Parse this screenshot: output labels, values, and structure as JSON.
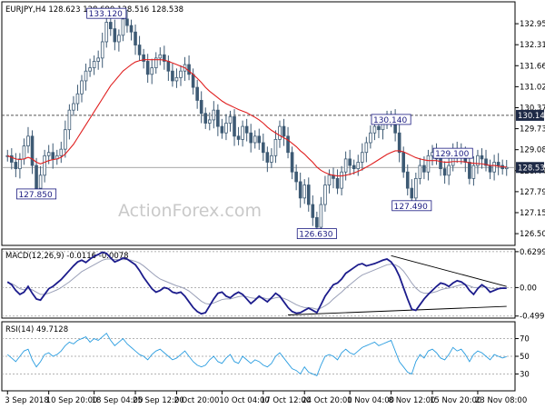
{
  "chart_data": [
    {
      "type": "candlestick",
      "header": "EURJPY,H4  128.623 128.690 128.516 128.538",
      "watermark": "ActionForex.com",
      "ylim": [
        126.2,
        133.6
      ],
      "yticks": [
        "132.955",
        "132.310",
        "131.665",
        "131.020",
        "130.375",
        "129.730",
        "129.085",
        "128.440",
        "127.795",
        "127.150",
        "126.505"
      ],
      "ytick_values": [
        132.955,
        132.31,
        131.665,
        131.02,
        130.375,
        129.73,
        129.085,
        128.44,
        127.795,
        127.15,
        126.505
      ],
      "last_price": {
        "label": "128.538",
        "value": 128.538
      },
      "resistance": {
        "label": "130.140",
        "value": 130.14
      },
      "annotations": [
        {
          "label": "133.120",
          "value": 133.12,
          "bar": 24
        },
        {
          "label": "127.850",
          "value": 127.85,
          "bar": 7
        },
        {
          "label": "126.630",
          "value": 126.63,
          "bar": 75
        },
        {
          "label": "130.140",
          "value": 130.14,
          "bar": 93
        },
        {
          "label": "127.490",
          "value": 127.49,
          "bar": 98
        },
        {
          "label": "129.100",
          "value": 129.1,
          "bar": 108
        }
      ],
      "series": [
        {
          "name": "EURJPY",
          "kind": "close-path",
          "values": [
            128.9,
            128.7,
            128.5,
            128.8,
            129.2,
            129.5,
            128.6,
            127.9,
            128.3,
            128.9,
            129.0,
            128.8,
            128.9,
            129.1,
            129.7,
            130.3,
            130.5,
            130.8,
            131.2,
            131.5,
            131.6,
            131.8,
            131.9,
            132.4,
            133.0,
            132.8,
            132.4,
            132.6,
            133.1,
            132.9,
            132.7,
            132.3,
            132.0,
            131.8,
            131.4,
            131.6,
            131.9,
            132.0,
            131.8,
            131.5,
            131.2,
            131.3,
            131.5,
            131.7,
            131.4,
            131.0,
            130.6,
            130.2,
            129.9,
            130.0,
            130.3,
            129.8,
            129.6,
            129.9,
            130.1,
            129.5,
            129.4,
            129.8,
            129.6,
            129.3,
            129.5,
            129.3,
            129.0,
            128.7,
            128.9,
            129.4,
            129.8,
            129.5,
            129.0,
            128.4,
            128.1,
            127.6,
            128.0,
            127.4,
            127.0,
            126.7,
            127.4,
            128.0,
            128.3,
            128.2,
            127.9,
            128.4,
            128.8,
            128.6,
            128.5,
            128.7,
            129.0,
            129.3,
            129.6,
            129.8,
            129.7,
            129.9,
            130.0,
            130.1,
            129.6,
            129.0,
            128.4,
            127.9,
            127.6,
            128.2,
            128.6,
            128.4,
            128.9,
            129.0,
            128.8,
            128.5,
            128.3,
            128.6,
            129.1,
            128.9,
            129.0,
            128.7,
            128.2,
            128.6,
            128.9,
            128.8,
            128.6,
            128.4,
            128.7,
            128.6,
            128.5,
            128.54
          ]
        },
        {
          "name": "MA",
          "kind": "line",
          "color": "#e02020",
          "values": [
            128.9,
            128.85,
            128.8,
            128.78,
            128.8,
            128.85,
            128.8,
            128.7,
            128.65,
            128.7,
            128.75,
            128.78,
            128.8,
            128.85,
            128.95,
            129.1,
            129.25,
            129.45,
            129.65,
            129.85,
            130.05,
            130.25,
            130.45,
            130.65,
            130.85,
            131.05,
            131.2,
            131.35,
            131.5,
            131.6,
            131.7,
            131.78,
            131.82,
            131.85,
            131.85,
            131.85,
            131.85,
            131.85,
            131.84,
            131.8,
            131.75,
            131.7,
            131.65,
            131.6,
            131.5,
            131.4,
            131.28,
            131.15,
            131.0,
            130.88,
            130.78,
            130.68,
            130.58,
            130.5,
            130.44,
            130.38,
            130.32,
            130.27,
            130.22,
            130.15,
            130.08,
            130.0,
            129.9,
            129.78,
            129.68,
            129.6,
            129.52,
            129.45,
            129.38,
            129.28,
            129.18,
            129.05,
            128.95,
            128.82,
            128.7,
            128.55,
            128.45,
            128.38,
            128.33,
            128.3,
            128.28,
            128.28,
            128.3,
            128.33,
            128.37,
            128.42,
            128.48,
            128.55,
            128.62,
            128.7,
            128.78,
            128.86,
            128.94,
            129.0,
            129.05,
            129.05,
            129.02,
            128.96,
            128.9,
            128.84,
            128.8,
            128.77,
            128.75,
            128.75,
            128.75,
            128.72,
            128.7,
            128.7,
            128.72,
            128.72,
            128.72,
            128.71,
            128.68,
            128.67,
            128.66,
            128.65,
            128.63,
            128.6,
            128.6,
            128.58,
            128.56,
            128.55
          ]
        }
      ]
    },
    {
      "type": "line",
      "header": "MACD(12,26,9) -0.0116 -0.0078",
      "ylim": [
        -0.52,
        0.66
      ],
      "yticks": [
        "0.6299",
        "0.00",
        "-0.4997"
      ],
      "ytick_values": [
        0.6299,
        0.0,
        -0.4997
      ],
      "trendlines": [
        {
          "name": "upper",
          "from": {
            "bar": 93,
            "value": 0.56
          },
          "to": {
            "bar": 121,
            "value": 0.02
          }
        },
        {
          "name": "lower",
          "from": {
            "bar": 68,
            "value": -0.48
          },
          "to": {
            "bar": 121,
            "value": -0.33
          }
        }
      ],
      "series": [
        {
          "name": "MACD",
          "color": "#1c1c8c",
          "values": [
            0.1,
            0.05,
            -0.05,
            -0.12,
            -0.08,
            0.02,
            -0.1,
            -0.2,
            -0.22,
            -0.12,
            -0.02,
            0.02,
            0.08,
            0.14,
            0.22,
            0.3,
            0.38,
            0.45,
            0.48,
            0.44,
            0.5,
            0.55,
            0.58,
            0.62,
            0.6,
            0.52,
            0.45,
            0.48,
            0.52,
            0.5,
            0.45,
            0.4,
            0.3,
            0.18,
            0.08,
            -0.02,
            -0.08,
            -0.05,
            0.0,
            -0.02,
            -0.08,
            -0.1,
            -0.08,
            -0.15,
            -0.25,
            -0.35,
            -0.42,
            -0.46,
            -0.44,
            -0.32,
            -0.2,
            -0.1,
            -0.08,
            -0.15,
            -0.18,
            -0.12,
            -0.08,
            -0.12,
            -0.2,
            -0.28,
            -0.22,
            -0.15,
            -0.2,
            -0.25,
            -0.18,
            -0.1,
            -0.15,
            -0.25,
            -0.35,
            -0.42,
            -0.45,
            -0.44,
            -0.4,
            -0.36,
            -0.4,
            -0.44,
            -0.3,
            -0.15,
            -0.05,
            0.05,
            0.08,
            0.15,
            0.25,
            0.3,
            0.35,
            0.4,
            0.42,
            0.38,
            0.4,
            0.42,
            0.45,
            0.48,
            0.5,
            0.45,
            0.35,
            0.2,
            0.0,
            -0.2,
            -0.38,
            -0.4,
            -0.3,
            -0.2,
            -0.12,
            -0.05,
            0.02,
            0.08,
            0.06,
            0.02,
            0.08,
            0.12,
            0.1,
            0.05,
            -0.05,
            -0.12,
            -0.02,
            0.05,
            0.0,
            -0.08,
            -0.05,
            -0.02,
            -0.01,
            -0.0116
          ]
        },
        {
          "name": "Signal",
          "color": "#9aa0b8",
          "values": [
            0.08,
            0.07,
            0.03,
            -0.02,
            -0.04,
            -0.02,
            -0.04,
            -0.08,
            -0.12,
            -0.12,
            -0.1,
            -0.07,
            -0.04,
            0.0,
            0.05,
            0.1,
            0.16,
            0.22,
            0.28,
            0.32,
            0.36,
            0.4,
            0.44,
            0.48,
            0.5,
            0.5,
            0.49,
            0.49,
            0.49,
            0.49,
            0.48,
            0.46,
            0.43,
            0.38,
            0.32,
            0.26,
            0.2,
            0.15,
            0.12,
            0.09,
            0.06,
            0.03,
            0.01,
            -0.02,
            -0.06,
            -0.12,
            -0.18,
            -0.24,
            -0.28,
            -0.29,
            -0.27,
            -0.24,
            -0.21,
            -0.2,
            -0.2,
            -0.18,
            -0.16,
            -0.15,
            -0.16,
            -0.18,
            -0.19,
            -0.18,
            -0.18,
            -0.2,
            -0.2,
            -0.18,
            -0.17,
            -0.19,
            -0.22,
            -0.26,
            -0.3,
            -0.33,
            -0.35,
            -0.35,
            -0.36,
            -0.38,
            -0.36,
            -0.32,
            -0.27,
            -0.2,
            -0.14,
            -0.08,
            -0.01,
            0.05,
            0.11,
            0.17,
            0.22,
            0.25,
            0.28,
            0.31,
            0.34,
            0.37,
            0.4,
            0.41,
            0.4,
            0.36,
            0.29,
            0.19,
            0.08,
            -0.01,
            -0.07,
            -0.1,
            -0.1,
            -0.09,
            -0.07,
            -0.04,
            -0.02,
            -0.01,
            0.01,
            0.03,
            0.05,
            0.05,
            0.03,
            0.0,
            0.0,
            0.01,
            0.01,
            -0.01,
            -0.02,
            -0.02,
            -0.01,
            -0.0078
          ]
        }
      ]
    },
    {
      "type": "line",
      "header": "RSI(14) 49.7128",
      "ylim": [
        12,
        88
      ],
      "yticks": [
        "70",
        "50",
        "30"
      ],
      "ytick_values": [
        70,
        50,
        30
      ],
      "series": [
        {
          "name": "RSI",
          "color": "#2a9de0",
          "values": [
            52,
            48,
            44,
            50,
            56,
            58,
            46,
            38,
            44,
            52,
            54,
            50,
            52,
            56,
            62,
            66,
            64,
            68,
            70,
            72,
            66,
            70,
            68,
            72,
            76,
            68,
            62,
            66,
            70,
            64,
            60,
            56,
            52,
            50,
            46,
            52,
            56,
            58,
            54,
            50,
            46,
            48,
            52,
            56,
            50,
            44,
            40,
            38,
            40,
            46,
            50,
            44,
            42,
            48,
            52,
            44,
            42,
            50,
            46,
            42,
            46,
            44,
            40,
            38,
            42,
            50,
            54,
            48,
            42,
            36,
            34,
            30,
            38,
            32,
            30,
            28,
            40,
            50,
            52,
            50,
            46,
            54,
            58,
            54,
            52,
            56,
            60,
            62,
            64,
            66,
            62,
            64,
            66,
            68,
            56,
            44,
            38,
            32,
            30,
            44,
            52,
            48,
            56,
            58,
            54,
            48,
            46,
            52,
            60,
            56,
            58,
            52,
            44,
            52,
            56,
            54,
            50,
            46,
            52,
            50,
            48,
            49.7
          ]
        }
      ]
    }
  ],
  "xaxis": {
    "labels": [
      "3 Sep 2018",
      "10 Sep 20:00",
      "18 Sep 04:00",
      "25 Sep 12:00",
      "2 Oct 20:00",
      "10 Oct 04:00",
      "17 Oct 12:00",
      "24 Oct 20:00",
      "1 Nov 04:00",
      "8 Nov 12:00",
      "15 Nov 20:00",
      "23 Nov 08:00"
    ],
    "label_bars": [
      0,
      10,
      21,
      31,
      41,
      52,
      62,
      72,
      83,
      93,
      103,
      114
    ]
  },
  "colors": {
    "candle": "#3d5a74",
    "grid": "#777777",
    "background": "#ffffff"
  }
}
